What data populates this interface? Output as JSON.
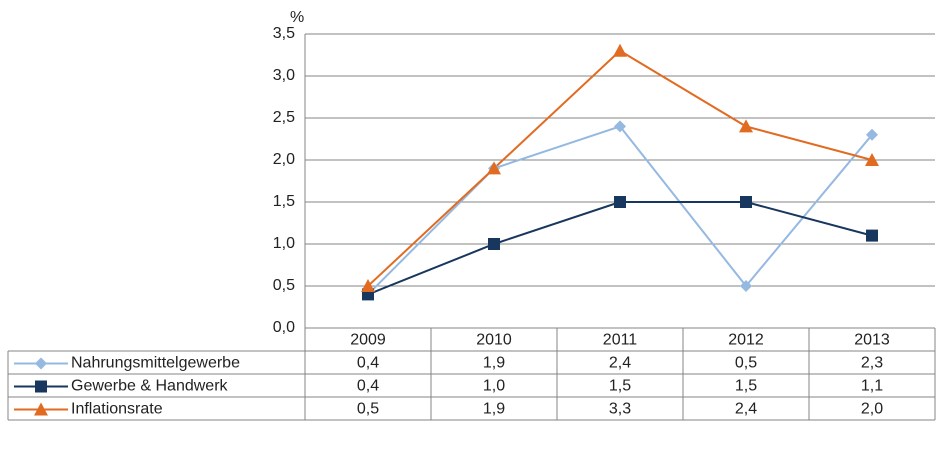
{
  "chart_data": {
    "type": "line",
    "unit_label": "%",
    "categories": [
      "2009",
      "2010",
      "2011",
      "2012",
      "2013"
    ],
    "series": [
      {
        "name": "Nahrungsmittelgewerbe",
        "color": "#95b9e1",
        "marker": "diamond",
        "values": [
          0.4,
          1.9,
          2.4,
          0.5,
          2.3
        ],
        "value_labels": [
          "0,4",
          "1,9",
          "2,4",
          "0,5",
          "2,3"
        ]
      },
      {
        "name": "Gewerbe & Handwerk",
        "color": "#17375e",
        "marker": "square",
        "values": [
          0.4,
          1.0,
          1.5,
          1.5,
          1.1
        ],
        "value_labels": [
          "0,4",
          "1,0",
          "1,5",
          "1,5",
          "1,1"
        ]
      },
      {
        "name": "Inflationsrate",
        "color": "#e26b22",
        "marker": "triangle",
        "values": [
          0.5,
          1.9,
          3.3,
          2.4,
          2.0
        ],
        "value_labels": [
          "0,5",
          "1,9",
          "3,3",
          "2,4",
          "2,0"
        ]
      }
    ],
    "ylim": [
      0,
      3.5
    ],
    "yticks": [
      {
        "value": 0,
        "label": "0,0"
      },
      {
        "value": 0.5,
        "label": "0,5"
      },
      {
        "value": 1,
        "label": "1,0"
      },
      {
        "value": 1.5,
        "label": "1,5"
      },
      {
        "value": 2,
        "label": "2,0"
      },
      {
        "value": 2.5,
        "label": "2,5"
      },
      {
        "value": 3,
        "label": "3,0"
      },
      {
        "value": 3.5,
        "label": "3,5"
      }
    ],
    "grid": true,
    "data_table": true
  }
}
